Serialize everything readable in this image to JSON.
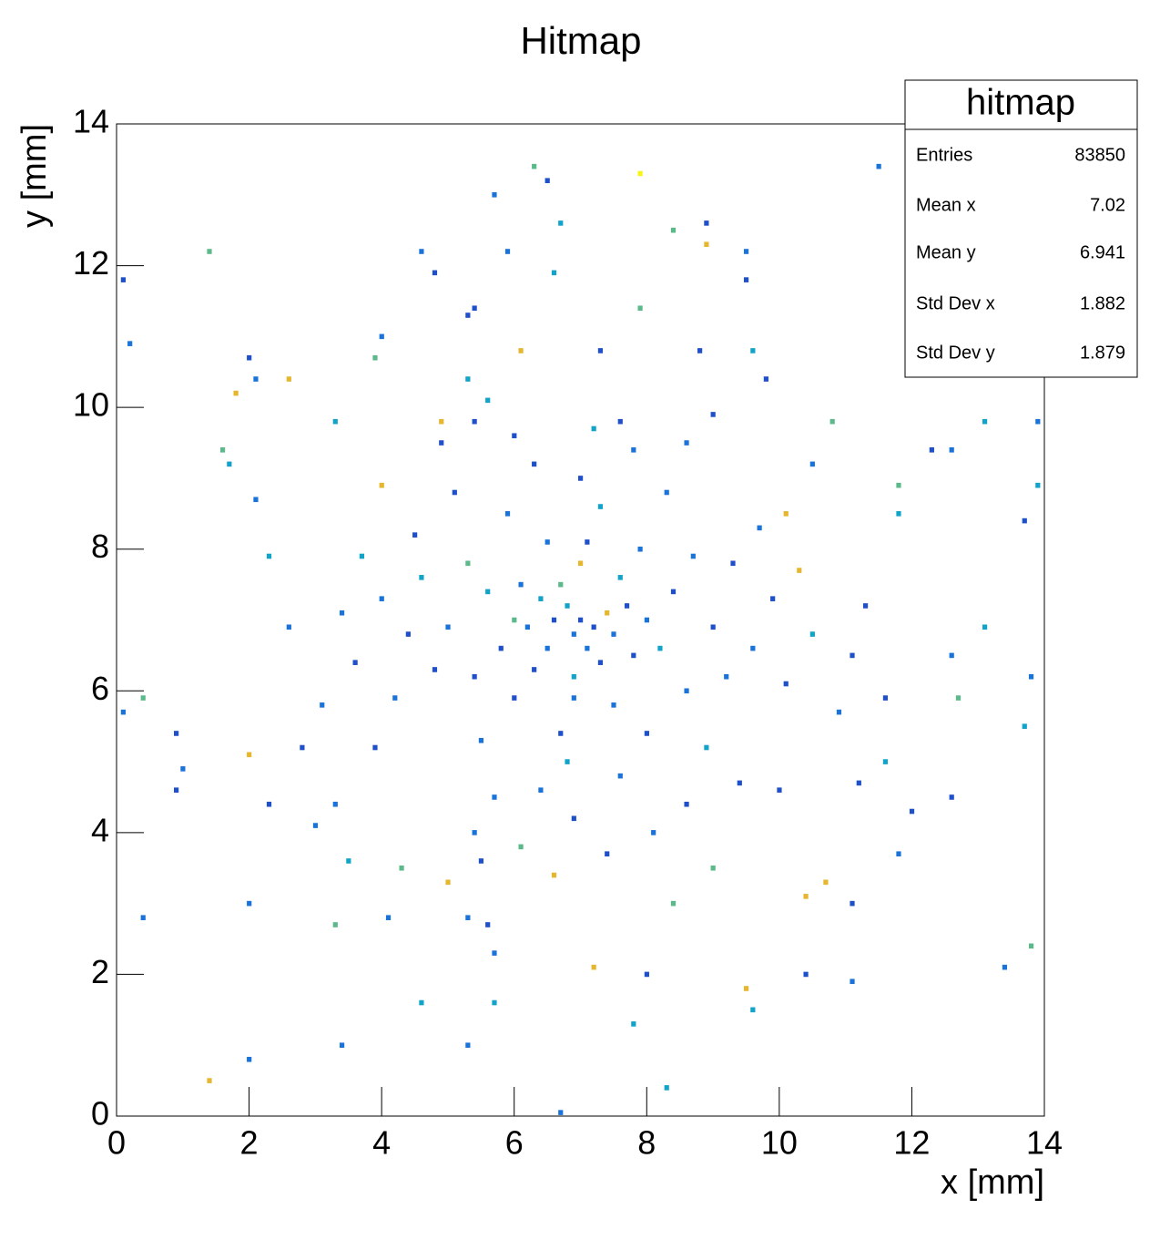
{
  "chart_data": {
    "type": "heatmap",
    "title": "Hitmap",
    "x_label": "x [mm]",
    "y_label": "y [mm]",
    "xlim": [
      0,
      14
    ],
    "ylim": [
      0,
      14
    ],
    "xticks": [
      0,
      2,
      4,
      6,
      8,
      10,
      12,
      14
    ],
    "yticks": [
      0,
      2,
      4,
      6,
      8,
      10,
      12,
      14
    ],
    "colors": [
      "#1f4fc9",
      "#1a73d9",
      "#12a3c9",
      "#5cb98a",
      "#e6b62e",
      "#f8f516"
    ],
    "cells": [
      [
        11.5,
        13.4,
        2
      ],
      [
        7.9,
        13.3,
        6
      ],
      [
        6.3,
        13.4,
        4
      ],
      [
        5.7,
        13.0,
        2
      ],
      [
        6.5,
        13.2,
        1
      ],
      [
        6.7,
        12.6,
        3
      ],
      [
        8.9,
        12.6,
        1
      ],
      [
        8.4,
        12.5,
        4
      ],
      [
        5.9,
        12.2,
        2
      ],
      [
        4.6,
        12.2,
        2
      ],
      [
        1.4,
        12.2,
        4
      ],
      [
        9.5,
        12.2,
        2
      ],
      [
        8.9,
        12.3,
        5
      ],
      [
        4.8,
        11.9,
        1
      ],
      [
        6.6,
        11.9,
        3
      ],
      [
        9.5,
        11.8,
        1
      ],
      [
        0.1,
        11.8,
        1
      ],
      [
        7.9,
        11.4,
        4
      ],
      [
        5.3,
        11.3,
        1
      ],
      [
        5.4,
        11.4,
        1
      ],
      [
        0.2,
        10.9,
        2
      ],
      [
        4.0,
        11.0,
        2
      ],
      [
        3.9,
        10.7,
        4
      ],
      [
        2.0,
        10.7,
        1
      ],
      [
        6.1,
        10.8,
        5
      ],
      [
        7.3,
        10.8,
        1
      ],
      [
        8.8,
        10.8,
        1
      ],
      [
        9.6,
        10.8,
        3
      ],
      [
        2.1,
        10.4,
        2
      ],
      [
        2.6,
        10.4,
        5
      ],
      [
        5.3,
        10.4,
        3
      ],
      [
        1.8,
        10.2,
        5
      ],
      [
        9.8,
        10.4,
        1
      ],
      [
        10.8,
        9.8,
        4
      ],
      [
        13.1,
        9.8,
        3
      ],
      [
        13.9,
        9.8,
        2
      ],
      [
        3.3,
        9.8,
        3
      ],
      [
        4.9,
        9.8,
        5
      ],
      [
        5.4,
        9.8,
        1
      ],
      [
        7.6,
        9.8,
        1
      ],
      [
        8.6,
        9.5,
        2
      ],
      [
        1.6,
        9.4,
        4
      ],
      [
        12.3,
        9.4,
        1
      ],
      [
        12.6,
        9.4,
        2
      ],
      [
        13.9,
        8.9,
        3
      ],
      [
        2.1,
        8.7,
        2
      ],
      [
        1.7,
        9.2,
        3
      ],
      [
        4.0,
        8.9,
        5
      ],
      [
        10.5,
        9.2,
        2
      ],
      [
        11.8,
        8.9,
        4
      ],
      [
        3.7,
        7.9,
        3
      ],
      [
        2.3,
        7.9,
        3
      ],
      [
        13.7,
        8.4,
        1
      ],
      [
        11.8,
        8.5,
        3
      ],
      [
        10.1,
        8.5,
        5
      ],
      [
        10.3,
        7.7,
        5
      ],
      [
        0.4,
        5.9,
        4
      ],
      [
        0.1,
        5.7,
        2
      ],
      [
        0.9,
        5.4,
        1
      ],
      [
        1.0,
        4.9,
        2
      ],
      [
        0.9,
        4.6,
        1
      ],
      [
        2.0,
        5.1,
        5
      ],
      [
        2.3,
        4.4,
        1
      ],
      [
        3.3,
        4.4,
        2
      ],
      [
        3.0,
        4.1,
        2
      ],
      [
        3.5,
        3.6,
        3
      ],
      [
        2.0,
        3.0,
        2
      ],
      [
        0.4,
        2.8,
        2
      ],
      [
        3.3,
        2.7,
        4
      ],
      [
        4.1,
        2.8,
        2
      ],
      [
        5.3,
        2.8,
        2
      ],
      [
        5.6,
        2.7,
        1
      ],
      [
        5.7,
        2.3,
        2
      ],
      [
        7.2,
        2.1,
        5
      ],
      [
        8.0,
        2.0,
        1
      ],
      [
        9.5,
        1.8,
        5
      ],
      [
        10.4,
        2.0,
        1
      ],
      [
        11.1,
        1.9,
        2
      ],
      [
        13.4,
        2.1,
        2
      ],
      [
        13.8,
        2.4,
        4
      ],
      [
        4.6,
        1.6,
        3
      ],
      [
        5.7,
        1.6,
        3
      ],
      [
        7.8,
        1.3,
        3
      ],
      [
        9.6,
        1.5,
        3
      ],
      [
        3.4,
        1.0,
        2
      ],
      [
        5.3,
        1.0,
        2
      ],
      [
        2.0,
        0.8,
        2
      ],
      [
        1.4,
        0.5,
        5
      ],
      [
        8.3,
        0.4,
        3
      ],
      [
        6.7,
        0.05,
        2
      ],
      [
        6.1,
        3.8,
        4
      ],
      [
        5.5,
        3.6,
        1
      ],
      [
        4.3,
        3.5,
        4
      ],
      [
        5.0,
        3.3,
        5
      ],
      [
        6.6,
        3.4,
        5
      ],
      [
        8.4,
        3.0,
        4
      ],
      [
        10.7,
        3.3,
        5
      ],
      [
        10.4,
        3.1,
        5
      ],
      [
        11.1,
        3.0,
        1
      ],
      [
        9.0,
        3.5,
        4
      ],
      [
        11.8,
        3.7,
        2
      ],
      [
        12.0,
        4.3,
        1
      ],
      [
        12.6,
        4.5,
        1
      ],
      [
        11.6,
        5.0,
        3
      ],
      [
        13.7,
        5.5,
        3
      ],
      [
        13.8,
        6.2,
        2
      ],
      [
        12.7,
        5.9,
        4
      ],
      [
        12.6,
        6.5,
        2
      ],
      [
        11.1,
        6.5,
        1
      ],
      [
        13.1,
        6.9,
        3
      ],
      [
        11.2,
        4.7,
        1
      ],
      [
        10.0,
        4.6,
        1
      ],
      [
        7.0,
        7.0,
        1
      ],
      [
        6.9,
        6.8,
        2
      ],
      [
        7.2,
        6.9,
        1
      ],
      [
        6.8,
        7.2,
        3
      ],
      [
        7.1,
        6.6,
        2
      ],
      [
        6.6,
        7.0,
        1
      ],
      [
        7.4,
        7.1,
        5
      ],
      [
        6.5,
        6.6,
        2
      ],
      [
        7.3,
        6.4,
        1
      ],
      [
        6.7,
        7.5,
        4
      ],
      [
        7.5,
        6.8,
        2
      ],
      [
        6.4,
        7.3,
        3
      ],
      [
        7.7,
        7.2,
        1
      ],
      [
        6.2,
        6.9,
        2
      ],
      [
        7.0,
        7.8,
        5
      ],
      [
        6.9,
        6.2,
        3
      ],
      [
        7.8,
        6.5,
        1
      ],
      [
        6.1,
        7.5,
        2
      ],
      [
        7.6,
        7.6,
        3
      ],
      [
        6.3,
        6.3,
        1
      ],
      [
        8.0,
        7.0,
        2
      ],
      [
        6.0,
        7.0,
        4
      ],
      [
        7.1,
        8.1,
        1
      ],
      [
        6.9,
        5.9,
        2
      ],
      [
        8.2,
        6.6,
        3
      ],
      [
        5.8,
        6.6,
        1
      ],
      [
        7.5,
        5.8,
        2
      ],
      [
        6.5,
        8.1,
        2
      ],
      [
        8.4,
        7.4,
        1
      ],
      [
        5.6,
        7.4,
        3
      ],
      [
        7.9,
        8.0,
        2
      ],
      [
        6.0,
        5.9,
        1
      ],
      [
        8.6,
        6.0,
        2
      ],
      [
        5.4,
        6.2,
        1
      ],
      [
        7.3,
        8.6,
        3
      ],
      [
        6.7,
        5.4,
        1
      ],
      [
        8.7,
        7.9,
        2
      ],
      [
        5.3,
        7.8,
        4
      ],
      [
        8.0,
        5.4,
        1
      ],
      [
        5.9,
        8.5,
        2
      ],
      [
        9.0,
        6.9,
        1
      ],
      [
        5.0,
        6.9,
        2
      ],
      [
        7.0,
        9.0,
        1
      ],
      [
        6.8,
        5.0,
        3
      ],
      [
        9.2,
        6.2,
        2
      ],
      [
        4.8,
        6.3,
        1
      ],
      [
        8.3,
        8.8,
        2
      ],
      [
        5.5,
        5.3,
        2
      ],
      [
        9.3,
        7.8,
        1
      ],
      [
        4.6,
        7.6,
        3
      ],
      [
        7.6,
        4.8,
        2
      ],
      [
        6.3,
        9.2,
        1
      ],
      [
        9.6,
        6.6,
        2
      ],
      [
        4.4,
        6.8,
        1
      ],
      [
        8.9,
        5.2,
        3
      ],
      [
        5.1,
        8.8,
        1
      ],
      [
        6.4,
        4.6,
        2
      ],
      [
        7.8,
        9.4,
        2
      ],
      [
        9.9,
        7.3,
        1
      ],
      [
        4.2,
        5.9,
        2
      ],
      [
        10.1,
        6.1,
        1
      ],
      [
        4.0,
        7.3,
        2
      ],
      [
        6.9,
        4.2,
        1
      ],
      [
        7.2,
        9.7,
        3
      ],
      [
        5.7,
        4.5,
        2
      ],
      [
        8.6,
        4.4,
        1
      ],
      [
        9.7,
        8.3,
        2
      ],
      [
        4.5,
        8.2,
        1
      ],
      [
        10.5,
        6.8,
        3
      ],
      [
        3.6,
        6.4,
        1
      ],
      [
        8.1,
        4.0,
        2
      ],
      [
        6.0,
        9.6,
        1
      ],
      [
        3.9,
        5.2,
        1
      ],
      [
        10.9,
        5.7,
        2
      ],
      [
        3.4,
        7.1,
        2
      ],
      [
        5.4,
        4.0,
        2
      ],
      [
        9.4,
        4.7,
        1
      ],
      [
        11.3,
        7.2,
        1
      ],
      [
        3.1,
        5.8,
        2
      ],
      [
        7.4,
        3.7,
        1
      ],
      [
        5.6,
        10.1,
        3
      ],
      [
        9.0,
        9.9,
        1
      ],
      [
        2.6,
        6.9,
        2
      ],
      [
        11.6,
        5.9,
        1
      ],
      [
        2.8,
        5.2,
        1
      ],
      [
        4.9,
        9.5,
        1
      ]
    ],
    "stats_box": {
      "title": "hitmap",
      "rows": [
        {
          "label": "Entries",
          "value": 83850
        },
        {
          "label": "Mean x",
          "value": 7.02
        },
        {
          "label": "Mean y",
          "value": 6.941
        },
        {
          "label": "Std Dev x",
          "value": 1.882
        },
        {
          "label": "Std Dev y",
          "value": 1.879
        }
      ]
    }
  }
}
